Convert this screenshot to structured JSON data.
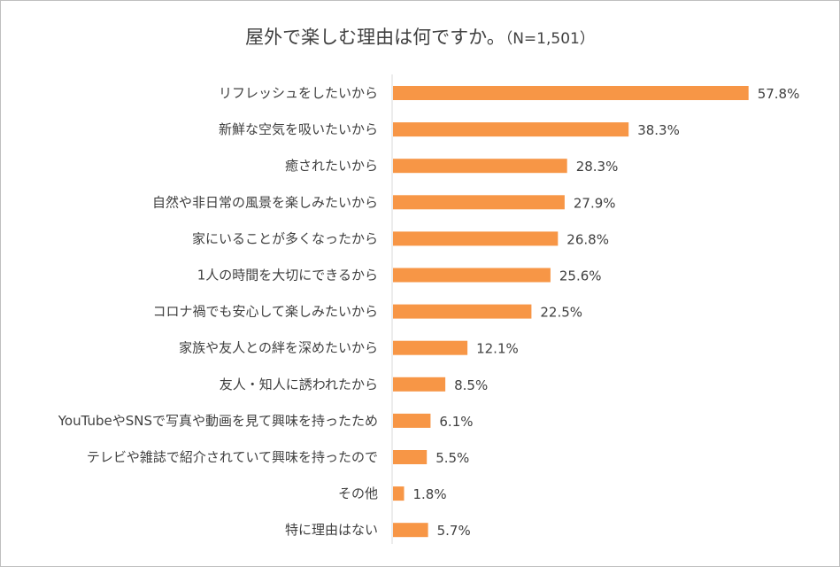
{
  "chart_data": {
    "type": "bar",
    "orientation": "horizontal",
    "title": "屋外で楽しむ理由は何ですか。",
    "subtitle": "（N=1,501）",
    "categories": [
      "リフレッシュをしたいから",
      "新鮮な空気を吸いたいから",
      "癒されたいから",
      "自然や非日常の風景を楽しみたいから",
      "家にいることが多くなったから",
      "1人の時間を大切にできるから",
      "コロナ禍でも安心して楽しみたいから",
      "家族や友人との絆を深めたいから",
      "友人・知人に誘われたから",
      "YouTubeやSNSで写真や動画を見て興味を持ったため",
      "テレビや雑誌で紹介されていて興味を持ったので",
      "その他",
      "特に理由はない"
    ],
    "values": [
      57.8,
      38.3,
      28.3,
      27.9,
      26.8,
      25.6,
      22.5,
      12.1,
      8.5,
      6.1,
      5.5,
      1.8,
      5.7
    ],
    "value_labels": [
      "57.8%",
      "38.3%",
      "28.3%",
      "27.9%",
      "26.8%",
      "25.6%",
      "22.5%",
      "12.1%",
      "8.5%",
      "6.1%",
      "5.5%",
      "1.8%",
      "5.7%"
    ],
    "xlabel": "",
    "ylabel": "",
    "xlim": [
      0,
      60
    ],
    "grid": false,
    "legend": false,
    "bar_color": "#f79646",
    "axis_color": "#d9d9d9"
  }
}
